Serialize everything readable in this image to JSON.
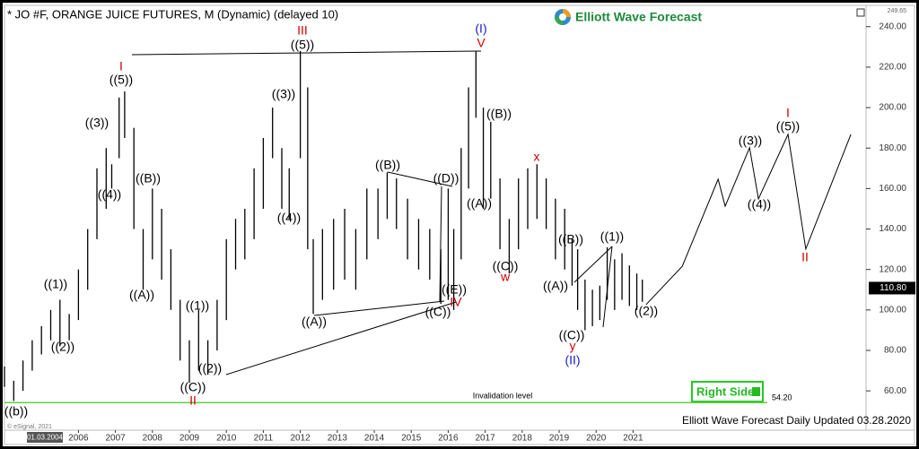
{
  "chart_data": {
    "type": "hilo",
    "title": "* JO #F, ORANGE JUICE FUTURES, M (Dynamic) (delayed 10)",
    "brand": "Elliott Wave Forecast",
    "footer": "Elliott Wave Forecast Daily Updated 03.28.2020",
    "copyright": "© eSignal, 2021",
    "start_label": "01.03.2004",
    "button": "Right Side",
    "color": "#000000",
    "xlim": [
      2004,
      2027.3
    ],
    "xticks": [
      2006,
      2007,
      2008,
      2009,
      2010,
      2011,
      2012,
      2013,
      2014,
      2015,
      2016,
      2017,
      2018,
      2019,
      2020,
      2021
    ],
    "ylim": [
      45,
      249.65
    ],
    "yticks": [
      {
        "value": 60,
        "label": "60.00"
      },
      {
        "value": 80,
        "label": "80.00"
      },
      {
        "value": 100,
        "label": "100.00"
      },
      {
        "value": 120,
        "label": "120.00"
      },
      {
        "value": 140,
        "label": "140.00"
      },
      {
        "value": 160,
        "label": "160.00"
      },
      {
        "value": 180,
        "label": "180.00"
      },
      {
        "value": 200,
        "label": "200.00"
      },
      {
        "value": 220,
        "label": "220.00"
      },
      {
        "value": 240,
        "label": "240.00"
      }
    ],
    "top_value": {
      "value": 249.65,
      "label": "249.65"
    },
    "last": {
      "value": 110.8,
      "label": "110.80"
    },
    "invalidation": {
      "value": 54.2,
      "label": "54.20",
      "text": "Invalidation level",
      "color": "#66cc44"
    },
    "x": [
      2004.0,
      2004.25,
      2004.5,
      2004.75,
      2005.0,
      2005.25,
      2005.5,
      2005.75,
      2006.0,
      2006.25,
      2006.5,
      2006.75,
      2006.9,
      2007.1,
      2007.25,
      2007.5,
      2007.75,
      2008.0,
      2008.25,
      2008.5,
      2008.75,
      2009.0,
      2009.25,
      2009.5,
      2009.75,
      2010.0,
      2010.25,
      2010.5,
      2010.75,
      2011.0,
      2011.25,
      2011.5,
      2011.7,
      2012.0,
      2012.2,
      2012.35,
      2012.6,
      2012.9,
      2013.2,
      2013.5,
      2013.8,
      2014.1,
      2014.35,
      2014.6,
      2014.9,
      2015.2,
      2015.5,
      2015.8,
      2016.0,
      2016.15,
      2016.35,
      2016.55,
      2016.75,
      2016.95,
      2017.15,
      2017.4,
      2017.65,
      2017.9,
      2018.15,
      2018.4,
      2018.65,
      2018.9,
      2019.15,
      2019.35,
      2019.5,
      2019.7,
      2019.9,
      2020.1,
      2020.3,
      2020.5,
      2020.7,
      2020.9,
      2021.1,
      2021.25
    ],
    "high": [
      72,
      65,
      75,
      85,
      92,
      100,
      105,
      98,
      120,
      140,
      170,
      180,
      172,
      205,
      208,
      190,
      140,
      160,
      150,
      130,
      105,
      85,
      100,
      85,
      105,
      135,
      145,
      150,
      170,
      185,
      200,
      180,
      170,
      228,
      210,
      135,
      140,
      145,
      150,
      140,
      160,
      160,
      168,
      165,
      155,
      145,
      140,
      130,
      160,
      140,
      180,
      210,
      228,
      200,
      193,
      165,
      145,
      165,
      170,
      172,
      165,
      155,
      150,
      135,
      130,
      115,
      110,
      112,
      131,
      125,
      128,
      122,
      118,
      115
    ],
    "low": [
      62,
      55,
      60,
      70,
      78,
      85,
      82,
      85,
      95,
      110,
      135,
      150,
      160,
      175,
      185,
      140,
      110,
      125,
      115,
      100,
      75,
      64,
      70,
      68,
      80,
      95,
      120,
      125,
      135,
      150,
      175,
      150,
      145,
      175,
      130,
      98,
      105,
      110,
      115,
      110,
      125,
      135,
      145,
      140,
      125,
      120,
      115,
      103,
      105,
      100,
      125,
      160,
      195,
      150,
      155,
      130,
      118,
      130,
      140,
      145,
      140,
      125,
      120,
      112,
      100,
      90,
      92,
      95,
      105,
      100,
      105,
      102,
      100,
      104
    ],
    "projection": {
      "x": [
        2021.35,
        2022.33,
        2023.3,
        2023.49,
        2024.15,
        2024.39,
        2025.19,
        2025.67,
        2026.89
      ],
      "values": [
        102.6,
        121.6,
        164.6,
        151.3,
        180.2,
        154.9,
        186.8,
        130.1,
        186.8
      ]
    },
    "wave_labels": [
      {
        "text": "((b))",
        "color": "#000000"
      },
      {
        "text": "I",
        "color": "#cc0000"
      },
      {
        "text": "((5))",
        "color": "#000000"
      },
      {
        "text": "((3))",
        "color": "#000000"
      },
      {
        "text": "((4))",
        "color": "#000000"
      },
      {
        "text": "((B))",
        "color": "#000000"
      },
      {
        "text": "((A))",
        "color": "#000000"
      },
      {
        "text": "((1))",
        "color": "#000000"
      },
      {
        "text": "((2))",
        "color": "#000000"
      },
      {
        "text": "((C))",
        "color": "#000000"
      },
      {
        "text": "II",
        "color": "#cc0000"
      },
      {
        "text": "((1))",
        "color": "#000000"
      },
      {
        "text": "((2))",
        "color": "#000000"
      },
      {
        "text": "((3))",
        "color": "#000000"
      },
      {
        "text": "((4))",
        "color": "#000000"
      },
      {
        "text": "III",
        "color": "#cc0000"
      },
      {
        "text": "((5))",
        "color": "#000000"
      },
      {
        "text": "((A))",
        "color": "#000000"
      },
      {
        "text": "((B))",
        "color": "#000000"
      },
      {
        "text": "((D))",
        "color": "#000000"
      },
      {
        "text": "((E))",
        "color": "#000000"
      },
      {
        "text": "IV",
        "color": "#cc0000"
      },
      {
        "text": "((C))",
        "color": "#000000"
      },
      {
        "text": "(I)",
        "color": "#1a1acc"
      },
      {
        "text": "V",
        "color": "#cc0000"
      },
      {
        "text": "((B))",
        "color": "#000000"
      },
      {
        "text": "((A))",
        "color": "#000000"
      },
      {
        "text": "((C))",
        "color": "#000000"
      },
      {
        "text": "w",
        "color": "#cc0000"
      },
      {
        "text": "x",
        "color": "#cc0000"
      },
      {
        "text": "((B))",
        "color": "#000000"
      },
      {
        "text": "((A))",
        "color": "#000000"
      },
      {
        "text": "((1))",
        "color": "#000000"
      },
      {
        "text": "((C))",
        "color": "#000000"
      },
      {
        "text": "y",
        "color": "#cc0000"
      },
      {
        "text": "(II)",
        "color": "#1a1acc"
      },
      {
        "text": "((2))",
        "color": "#000000"
      },
      {
        "text": "((3))",
        "color": "#000000"
      },
      {
        "text": "((4))",
        "color": "#000000"
      },
      {
        "text": "I",
        "color": "#cc0000"
      },
      {
        "text": "((5))",
        "color": "#000000"
      },
      {
        "text": "II",
        "color": "#cc0000"
      }
    ]
  }
}
